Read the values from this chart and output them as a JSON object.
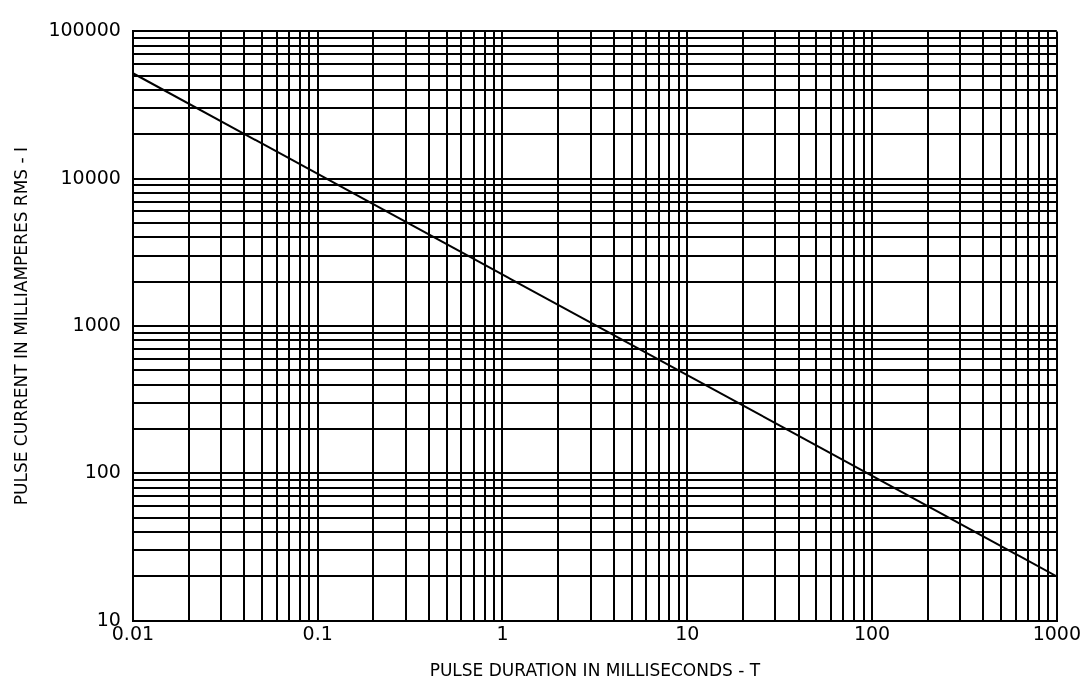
{
  "chart_data": {
    "type": "line",
    "xlabel": "PULSE DURATION IN MILLISECONDS - T",
    "ylabel": "PULSE CURRENT IN MILLIAMPERES RMS - I",
    "log": "xy",
    "grid": true,
    "legend": false,
    "marker": "none",
    "line_style": "solid",
    "x": [
      0.01,
      1000
    ],
    "series": [
      {
        "color": "#000000",
        "values": [
          52000,
          20
        ]
      }
    ],
    "xlim": [
      0.01,
      1000
    ],
    "ylim": [
      10,
      100000
    ],
    "xticks": [
      0.01,
      {
        "value": 0.02,
        "label": null
      },
      {
        "value": 0.03,
        "label": null
      },
      {
        "value": 0.04,
        "label": null
      },
      {
        "value": 0.05,
        "label": null
      },
      {
        "value": 0.06,
        "label": null
      },
      {
        "value": 0.07,
        "label": null
      },
      {
        "value": 0.08,
        "label": null
      },
      {
        "value": 0.09,
        "label": null
      },
      0.1,
      {
        "value": 0.2,
        "label": null
      },
      {
        "value": 0.3,
        "label": null
      },
      {
        "value": 0.4,
        "label": null
      },
      {
        "value": 0.5,
        "label": null
      },
      {
        "value": 0.6,
        "label": null
      },
      {
        "value": 0.7,
        "label": null
      },
      {
        "value": 0.8,
        "label": null
      },
      {
        "value": 0.9,
        "label": null
      },
      1,
      {
        "value": 2,
        "label": null
      },
      {
        "value": 3,
        "label": null
      },
      {
        "value": 4,
        "label": null
      },
      {
        "value": 5,
        "label": null
      },
      {
        "value": 6,
        "label": null
      },
      {
        "value": 7,
        "label": null
      },
      {
        "value": 8,
        "label": null
      },
      {
        "value": 9,
        "label": null
      },
      10,
      {
        "value": 20,
        "label": null
      },
      {
        "value": 30,
        "label": null
      },
      {
        "value": 40,
        "label": null
      },
      {
        "value": 50,
        "label": null
      },
      {
        "value": 60,
        "label": null
      },
      {
        "value": 70,
        "label": null
      },
      {
        "value": 80,
        "label": null
      },
      {
        "value": 90,
        "label": null
      },
      100,
      {
        "value": 200,
        "label": null
      },
      {
        "value": 300,
        "label": null
      },
      {
        "value": 400,
        "label": null
      },
      {
        "value": 500,
        "label": null
      },
      {
        "value": 600,
        "label": null
      },
      {
        "value": 700,
        "label": null
      },
      {
        "value": 800,
        "label": null
      },
      {
        "value": 900,
        "label": null
      },
      1000
    ],
    "yticks": [
      10,
      {
        "value": 20,
        "label": null
      },
      {
        "value": 30,
        "label": null
      },
      {
        "value": 40,
        "label": null
      },
      {
        "value": 50,
        "label": null
      },
      {
        "value": 60,
        "label": null
      },
      {
        "value": 70,
        "label": null
      },
      {
        "value": 80,
        "label": null
      },
      {
        "value": 90,
        "label": null
      },
      100,
      {
        "value": 200,
        "label": null
      },
      {
        "value": 300,
        "label": null
      },
      {
        "value": 400,
        "label": null
      },
      {
        "value": 500,
        "label": null
      },
      {
        "value": 600,
        "label": null
      },
      {
        "value": 700,
        "label": null
      },
      {
        "value": 800,
        "label": null
      },
      {
        "value": 900,
        "label": null
      },
      1000,
      {
        "value": 2000,
        "label": null
      },
      {
        "value": 3000,
        "label": null
      },
      {
        "value": 4000,
        "label": null
      },
      {
        "value": 5000,
        "label": null
      },
      {
        "value": 6000,
        "label": null
      },
      {
        "value": 7000,
        "label": null
      },
      {
        "value": 8000,
        "label": null
      },
      {
        "value": 9000,
        "label": null
      },
      10000,
      {
        "value": 20000,
        "label": null
      },
      {
        "value": 30000,
        "label": null
      },
      {
        "value": 40000,
        "label": null
      },
      {
        "value": 50000,
        "label": null
      },
      {
        "value": 60000,
        "label": null
      },
      {
        "value": 70000,
        "label": null
      },
      {
        "value": 80000,
        "label": null
      },
      {
        "value": 90000,
        "label": null
      },
      100000
    ]
  }
}
